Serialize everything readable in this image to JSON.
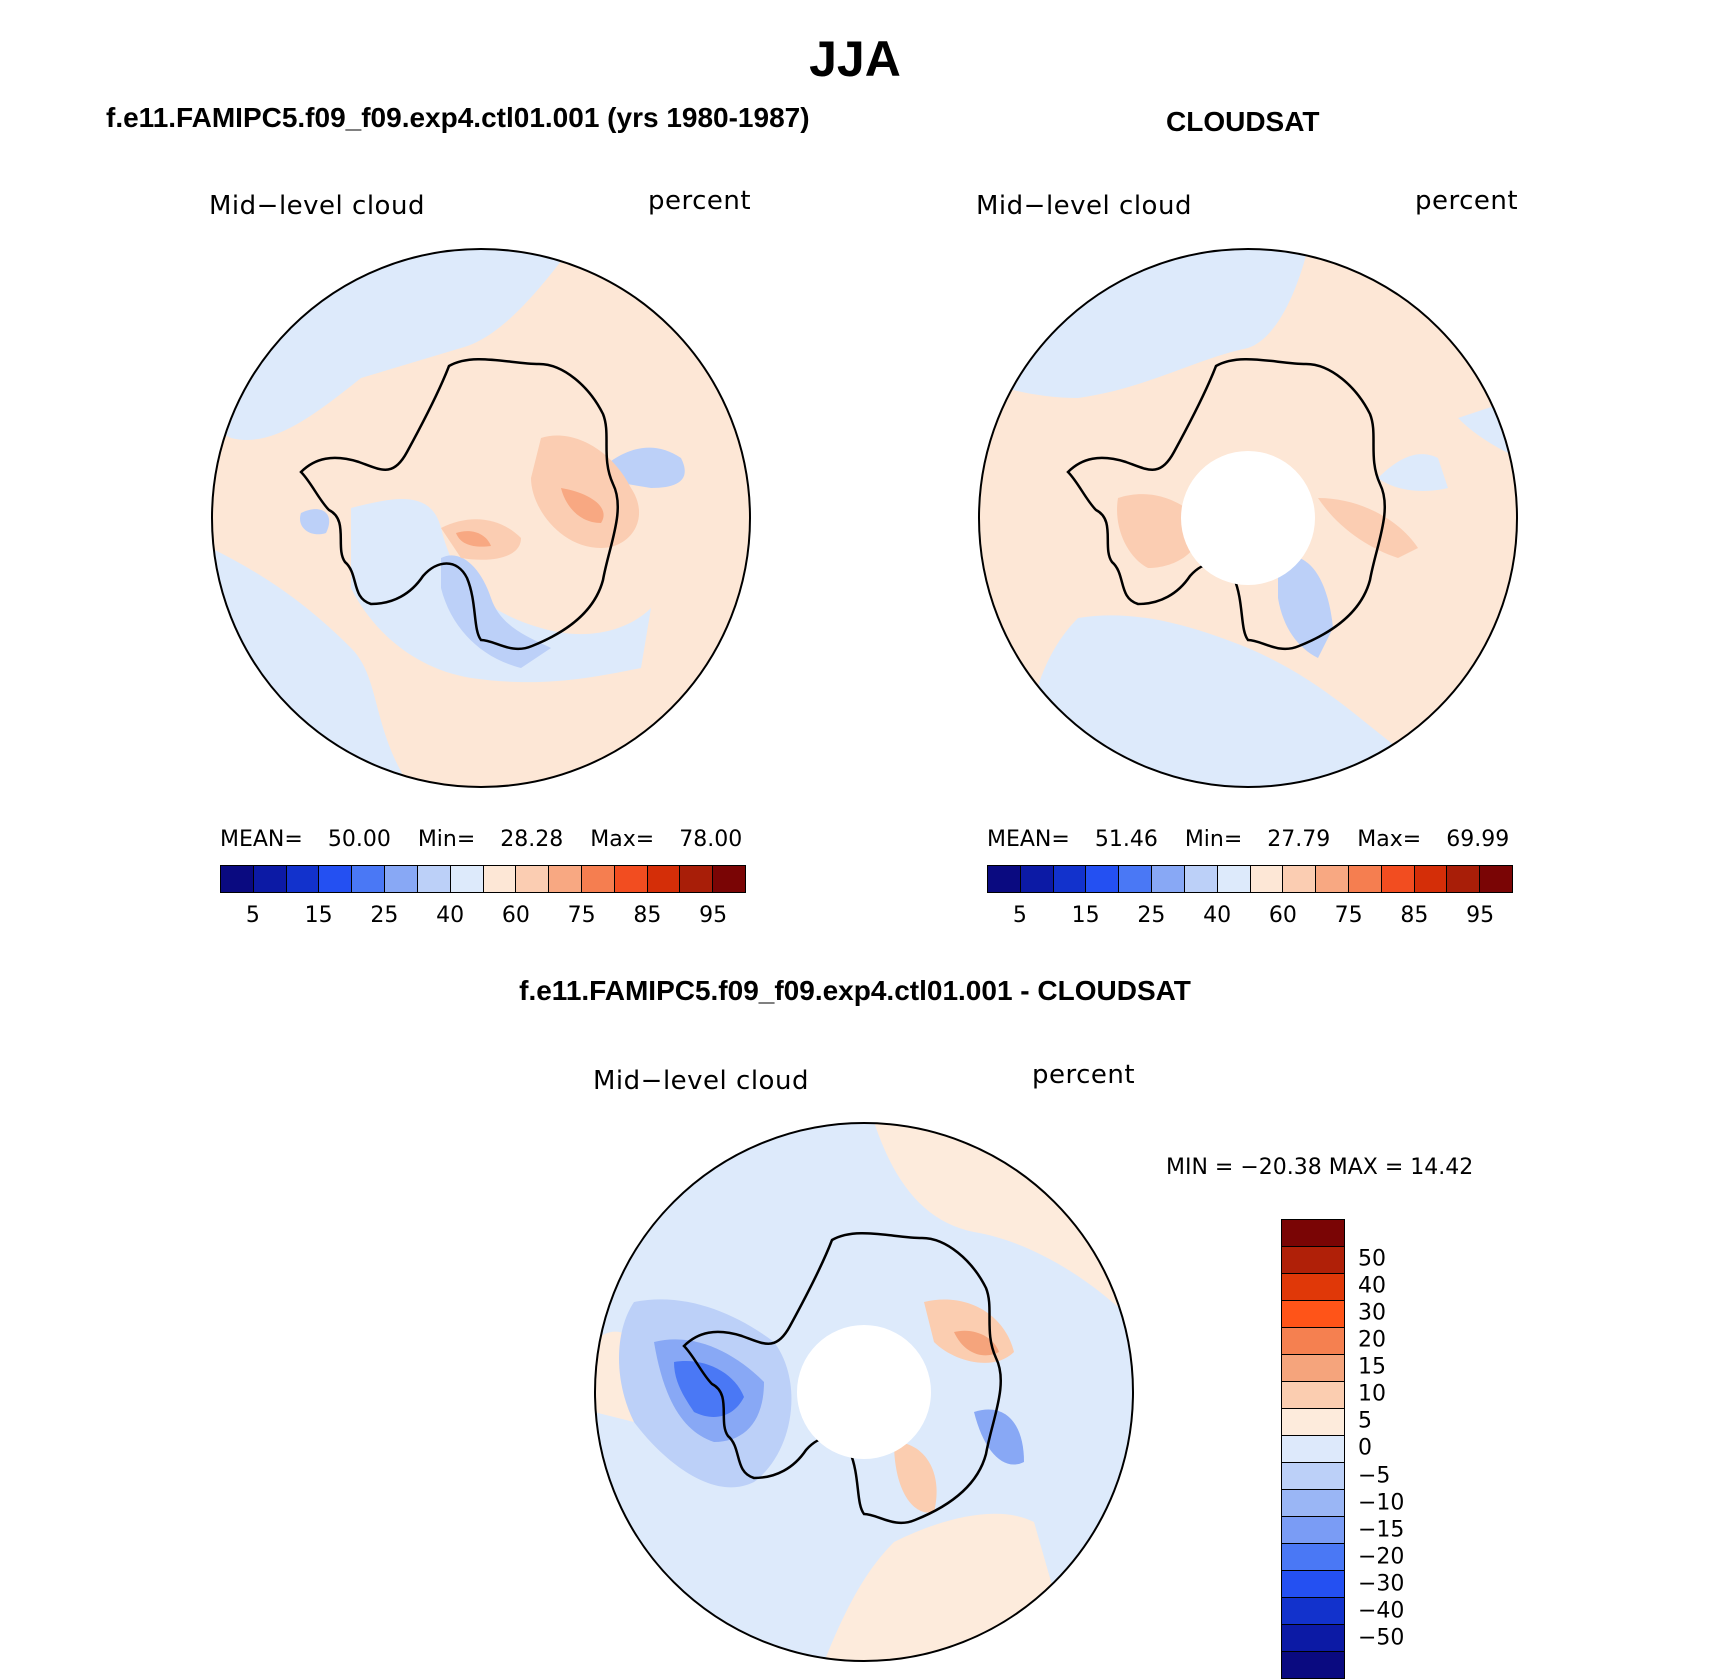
{
  "title": "JJA",
  "panels": {
    "left": {
      "title": "f.e11.FAMIPC5.f09_f09.exp4.ctl01.001 (yrs 1980-1987)",
      "variable": "Mid−level cloud",
      "units": "percent",
      "stats": {
        "mean_label": "MEAN=",
        "mean": "50.00",
        "min_label": "Min=",
        "min": "28.28",
        "max_label": "Max=",
        "max": "78.00"
      }
    },
    "right": {
      "title": "CLOUDSAT",
      "variable": "Mid−level cloud",
      "units": "percent",
      "stats": {
        "mean_label": "MEAN=",
        "mean": "51.46",
        "min_label": "Min=",
        "min": "27.79",
        "max_label": "Max=",
        "max": "69.99"
      }
    },
    "bottom": {
      "title": "f.e11.FAMIPC5.f09_f09.exp4.ctl01.001 - CLOUDSAT",
      "variable": "Mid−level cloud",
      "units": "percent",
      "stats_text": "MIN = −20.38 MAX =   14.42"
    }
  },
  "colorbars": {
    "absolute": {
      "colors": [
        "#0a0a80",
        "#0c1aa5",
        "#1232cc",
        "#2450f2",
        "#4a78f5",
        "#88a8f5",
        "#bcd0f8",
        "#ddeafb",
        "#fde7d6",
        "#fbcdb2",
        "#f8a882",
        "#f57e50",
        "#f24d20",
        "#d42e08",
        "#a81e08",
        "#7a0505"
      ],
      "ticks": [
        "5",
        "15",
        "25",
        "40",
        "60",
        "75",
        "85",
        "95"
      ]
    },
    "difference": {
      "colors": [
        "#7a0505",
        "#b02008",
        "#e03808",
        "#ff5418",
        "#f58050",
        "#f5a47c",
        "#fbcdb0",
        "#fdebdc",
        "#dde9fb",
        "#bcd0f8",
        "#9ab6f5",
        "#7a9cf5",
        "#4a78f5",
        "#2450f2",
        "#1232cc",
        "#0c1aa5",
        "#0a0a80"
      ],
      "ticks": [
        "50",
        "40",
        "30",
        "20",
        "15",
        "10",
        "5",
        "0",
        "−5",
        "−10",
        "−15",
        "−20",
        "−30",
        "−40",
        "−50"
      ]
    }
  }
}
